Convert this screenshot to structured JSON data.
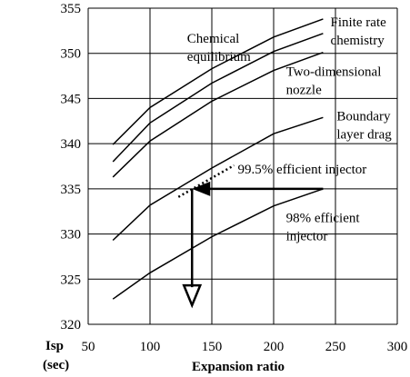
{
  "chart_data": {
    "type": "line",
    "xlabel": "Expansion ratio",
    "ylabel": [
      "Isp",
      "(sec)"
    ],
    "xlim": [
      50,
      300
    ],
    "ylim": [
      320,
      355
    ],
    "x_ticks": [
      50,
      100,
      150,
      200,
      250,
      300
    ],
    "y_ticks": [
      320,
      325,
      330,
      335,
      340,
      345,
      350,
      355
    ],
    "grid": "vertical and horizontal",
    "series": [
      {
        "values": [
          [
            70,
            339.9
          ],
          [
            100,
            344.0
          ],
          [
            150,
            348.3
          ],
          [
            200,
            351.8
          ],
          [
            240,
            353.8
          ]
        ]
      },
      {
        "values": [
          [
            70,
            338.0
          ],
          [
            100,
            342.3
          ],
          [
            150,
            346.7
          ],
          [
            200,
            350.2
          ],
          [
            240,
            352.2
          ]
        ]
      },
      {
        "values": [
          [
            70,
            336.3
          ],
          [
            100,
            340.3
          ],
          [
            150,
            344.7
          ],
          [
            200,
            348.1
          ],
          [
            240,
            350.1
          ]
        ]
      },
      {
        "values": [
          [
            70,
            329.3
          ],
          [
            100,
            333.2
          ],
          [
            150,
            337.3
          ],
          [
            200,
            341.1
          ],
          [
            240,
            342.9
          ]
        ]
      },
      {
        "values": [
          [
            70,
            322.8
          ],
          [
            100,
            325.7
          ],
          [
            150,
            329.7
          ],
          [
            200,
            333.1
          ],
          [
            240,
            335.0
          ]
        ]
      }
    ],
    "dotted_segment": [
      [
        123,
        334.1
      ],
      [
        168,
        337.6
      ]
    ],
    "arrows": {
      "horizontal": {
        "from": [
          240,
          335.0
        ],
        "to": [
          134,
          335.0
        ]
      },
      "vertical": {
        "from": [
          134,
          335.0
        ],
        "to": [
          134,
          322.1
        ]
      }
    },
    "annotations": [
      {
        "lines": [
          "Chemical",
          "equilibrium"
        ],
        "at": [
          130,
          351.2
        ]
      },
      {
        "lines": [
          "Finite rate",
          "chemistry"
        ],
        "at": [
          246,
          353.0
        ]
      },
      {
        "lines": [
          "Two-dimensional",
          "nozzle"
        ],
        "at": [
          210,
          347.5
        ]
      },
      {
        "lines": [
          "Boundary",
          "layer drag"
        ],
        "at": [
          251,
          342.6
        ]
      },
      {
        "lines": [
          "99.5% efficient injector"
        ],
        "at": [
          171,
          336.7
        ]
      },
      {
        "lines": [
          "98% efficient",
          "injector"
        ],
        "at": [
          210,
          331.3
        ]
      }
    ]
  }
}
